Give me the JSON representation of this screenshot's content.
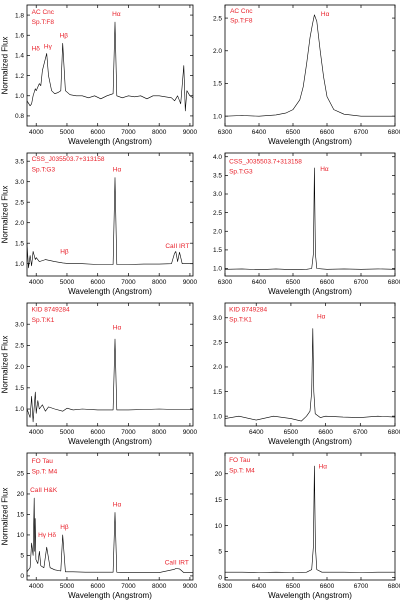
{
  "style": {
    "annotation_color": "#e8202a",
    "line_color": "#000000",
    "background": "#ffffff"
  },
  "chart_data": [
    {
      "id": "p1",
      "type": "line",
      "title": "",
      "xlabel": "Wavelength (Angstrom)",
      "ylabel": "Normalized Flux",
      "xlim": [
        3700,
        9100
      ],
      "ylim": [
        0.7,
        1.9
      ],
      "xticks": [
        4000,
        5000,
        6000,
        7000,
        8000,
        9000
      ],
      "yticks": [
        0.8,
        1.0,
        1.2,
        1.4,
        1.6,
        1.8
      ],
      "x": [
        3700,
        3800,
        3850,
        3900,
        3970,
        4000,
        4100,
        4150,
        4200,
        4340,
        4400,
        4500,
        4600,
        4700,
        4800,
        4861,
        4950,
        5100,
        5300,
        5500,
        5700,
        5900,
        6100,
        6300,
        6500,
        6563,
        6620,
        6800,
        7000,
        7200,
        7400,
        7600,
        7800,
        8000,
        8200,
        8400,
        8500,
        8600,
        8700,
        8800,
        8850,
        8900,
        9000,
        9100
      ],
      "y": [
        0.95,
        0.9,
        0.92,
        1.0,
        1.07,
        1.05,
        1.12,
        1.1,
        1.25,
        1.42,
        1.2,
        1.05,
        1.02,
        1.03,
        1.05,
        1.52,
        1.05,
        1.01,
        1.0,
        1.0,
        0.98,
        1.0,
        0.97,
        1.0,
        1.02,
        1.73,
        1.0,
        0.98,
        1.0,
        0.99,
        1.0,
        0.97,
        1.0,
        1.0,
        0.99,
        0.98,
        0.95,
        1.0,
        0.92,
        1.3,
        0.85,
        1.05,
        1.0,
        0.98
      ],
      "annotations": [
        {
          "text": "AC Cnc",
          "x": 3850,
          "y": 1.81
        },
        {
          "text": "Sp.T:F8",
          "x": 3850,
          "y": 1.71
        },
        {
          "text": "Hδ",
          "x": 3850,
          "y": 1.45
        },
        {
          "text": "Hγ",
          "x": 4250,
          "y": 1.47
        },
        {
          "text": "Hβ",
          "x": 4760,
          "y": 1.58
        },
        {
          "text": "Hα",
          "x": 6470,
          "y": 1.79
        }
      ]
    },
    {
      "id": "p2",
      "type": "line",
      "title": "",
      "xlabel": "Wavelength (Angstrom)",
      "ylabel": "",
      "xlim": [
        6300,
        6800
      ],
      "ylim": [
        0.85,
        2.7
      ],
      "xticks": [
        6300,
        6400,
        6500,
        6600,
        6700,
        6800
      ],
      "yticks": [
        1.0,
        1.5,
        2.0,
        2.5
      ],
      "x": [
        6300,
        6350,
        6400,
        6450,
        6480,
        6500,
        6520,
        6530,
        6540,
        6550,
        6557,
        6563,
        6570,
        6580,
        6590,
        6600,
        6620,
        6650,
        6700,
        6750,
        6800
      ],
      "y": [
        1.0,
        1.01,
        1.0,
        1.02,
        1.05,
        1.1,
        1.25,
        1.45,
        1.8,
        2.2,
        2.4,
        2.55,
        2.45,
        2.0,
        1.6,
        1.3,
        1.1,
        1.03,
        1.0,
        1.0,
        1.0
      ],
      "annotations": [
        {
          "text": "AC Cnc",
          "x": 6315,
          "y": 2.58
        },
        {
          "text": "Sp.T:F8",
          "x": 6315,
          "y": 2.43
        },
        {
          "text": "Hα",
          "x": 6582,
          "y": 2.53
        }
      ]
    },
    {
      "id": "p3",
      "type": "line",
      "title": "",
      "xlabel": "Wavelength (Angstrom)",
      "ylabel": "Normalized Flux",
      "xlim": [
        3700,
        9100
      ],
      "ylim": [
        0.7,
        3.7
      ],
      "xticks": [
        4000,
        5000,
        6000,
        7000,
        8000,
        9000
      ],
      "yticks": [
        1.0,
        1.5,
        2.0,
        2.5,
        3.0,
        3.5
      ],
      "x": [
        3700,
        3750,
        3800,
        3850,
        3900,
        3970,
        4000,
        4100,
        4300,
        4600,
        4861,
        5100,
        5500,
        6000,
        6500,
        6563,
        6620,
        7000,
        7500,
        8000,
        8400,
        8498,
        8542,
        8600,
        8662,
        8750,
        9000,
        9100
      ],
      "y": [
        1.5,
        0.9,
        1.2,
        0.95,
        1.3,
        1.1,
        1.15,
        1.05,
        1.1,
        1.05,
        1.02,
        1.0,
        1.0,
        0.98,
        0.98,
        3.1,
        0.98,
        0.98,
        0.99,
        0.99,
        1.0,
        1.25,
        1.3,
        1.05,
        1.28,
        1.0,
        1.0,
        1.0
      ],
      "annotations": [
        {
          "text": "CSS_J035503.7+313158",
          "x": 3850,
          "y": 3.5
        },
        {
          "text": "Sp.T:G3",
          "x": 3850,
          "y": 3.25
        },
        {
          "text": "Hα",
          "x": 6490,
          "y": 3.25
        },
        {
          "text": "Hβ",
          "x": 4780,
          "y": 1.25
        },
        {
          "text": "CaII IRT",
          "x": 8200,
          "y": 1.38
        }
      ]
    },
    {
      "id": "p4",
      "type": "line",
      "title": "",
      "xlabel": "Wavelength (Angstrom)",
      "ylabel": "",
      "xlim": [
        6300,
        6800
      ],
      "ylim": [
        0.8,
        4.1
      ],
      "xticks": [
        6300,
        6400,
        6500,
        6600,
        6700,
        6800
      ],
      "yticks": [
        1.0,
        1.5,
        2.0,
        2.5,
        3.0,
        3.5,
        4.0
      ],
      "x": [
        6300,
        6350,
        6400,
        6450,
        6500,
        6540,
        6555,
        6560,
        6563,
        6566,
        6570,
        6585,
        6600,
        6650,
        6700,
        6750,
        6800
      ],
      "y": [
        0.98,
        0.99,
        0.97,
        0.99,
        0.97,
        0.98,
        1.0,
        1.4,
        3.7,
        1.4,
        1.0,
        0.99,
        0.98,
        0.99,
        0.98,
        0.99,
        0.98
      ],
      "annotations": [
        {
          "text": "CSS_J035503.7+313158",
          "x": 6312,
          "y": 3.82
        },
        {
          "text": "Sp.T:G3",
          "x": 6312,
          "y": 3.55
        },
        {
          "text": "Hα",
          "x": 6580,
          "y": 3.62
        }
      ]
    },
    {
      "id": "p5",
      "type": "line",
      "title": "",
      "xlabel": "Wavelength (Angstrom)",
      "ylabel": "Normalized Flux",
      "xlim": [
        3700,
        9100
      ],
      "ylim": [
        0.6,
        3.5
      ],
      "xticks": [
        4000,
        5000,
        6000,
        7000,
        8000,
        9000
      ],
      "yticks": [
        1.0,
        1.5,
        2.0,
        2.5,
        3.0
      ],
      "x": [
        3700,
        3800,
        3850,
        3900,
        3970,
        4000,
        4050,
        4100,
        4200,
        4300,
        4400,
        4600,
        4861,
        5000,
        5200,
        5500,
        6000,
        6500,
        6563,
        6620,
        7000,
        7500,
        8000,
        8500,
        9000,
        9100
      ],
      "y": [
        1.0,
        0.8,
        1.3,
        0.7,
        1.4,
        0.9,
        1.2,
        1.0,
        1.1,
        0.95,
        1.05,
        1.0,
        0.95,
        1.02,
        0.98,
        1.0,
        0.98,
        0.98,
        2.65,
        0.98,
        0.98,
        0.99,
        1.0,
        0.99,
        0.99,
        0.99
      ],
      "annotations": [
        {
          "text": "KID 8749284",
          "x": 3850,
          "y": 3.3
        },
        {
          "text": "Sp.T:K1",
          "x": 3850,
          "y": 3.05
        },
        {
          "text": "Hα",
          "x": 6490,
          "y": 2.88
        }
      ]
    },
    {
      "id": "p6",
      "type": "line",
      "title": "",
      "xlabel": "Wavelength (Angstrom)",
      "ylabel": "",
      "xlim": [
        6310,
        6800
      ],
      "ylim": [
        0.8,
        3.3
      ],
      "xticks": [
        6400,
        6500,
        6600,
        6700,
        6800
      ],
      "yticks": [
        1.0,
        1.5,
        2.0,
        2.5,
        3.0
      ],
      "x": [
        6310,
        6350,
        6400,
        6450,
        6500,
        6530,
        6545,
        6555,
        6560,
        6563,
        6566,
        6570,
        6585,
        6600,
        6650,
        6700,
        6750,
        6800
      ],
      "y": [
        0.95,
        1.0,
        0.92,
        1.0,
        0.95,
        0.9,
        1.0,
        1.1,
        1.5,
        2.78,
        1.5,
        1.05,
        0.97,
        1.0,
        0.98,
        0.97,
        1.0,
        0.98
      ],
      "annotations": [
        {
          "text": "KID 8749284",
          "x": 6322,
          "y": 3.13
        },
        {
          "text": "Sp.T:K1",
          "x": 6322,
          "y": 2.92
        },
        {
          "text": "Hα",
          "x": 6575,
          "y": 2.98
        }
      ]
    },
    {
      "id": "p7",
      "type": "line",
      "title": "",
      "xlabel": "Wavelength (Angstrom)",
      "ylabel": "Normalized Flux",
      "xlim": [
        3700,
        9100
      ],
      "ylim": [
        -1,
        30
      ],
      "xticks": [
        4000,
        5000,
        6000,
        7000,
        8000,
        9000
      ],
      "yticks": [
        0,
        5,
        10,
        15,
        20,
        25
      ],
      "x": [
        3700,
        3800,
        3850,
        3900,
        3934,
        3950,
        3968,
        3990,
        4050,
        4102,
        4150,
        4250,
        4340,
        4450,
        4600,
        4800,
        4861,
        4950,
        5200,
        5600,
        6000,
        6500,
        6563,
        6620,
        7000,
        7500,
        8000,
        8498,
        8542,
        8662,
        8800,
        9100
      ],
      "y": [
        1,
        2,
        8,
        5,
        19,
        6,
        14,
        4,
        3,
        6,
        2.5,
        2,
        7,
        2,
        1.5,
        1.2,
        10,
        1,
        1,
        0.9,
        0.9,
        0.9,
        15.5,
        0.9,
        0.8,
        0.8,
        0.8,
        1.6,
        1.8,
        1.7,
        0.8,
        0.8
      ],
      "annotations": [
        {
          "text": "FO Tau",
          "x": 3850,
          "y": 27.5
        },
        {
          "text": "Sp.T: M4",
          "x": 3850,
          "y": 25
        },
        {
          "text": "CaII H&K",
          "x": 3800,
          "y": 20.5
        },
        {
          "text": "Hγ Hδ",
          "x": 4060,
          "y": 9.5
        },
        {
          "text": "Hβ",
          "x": 4780,
          "y": 11.5
        },
        {
          "text": "Hα",
          "x": 6490,
          "y": 17
        },
        {
          "text": "CaII IRT",
          "x": 8180,
          "y": 2.8
        }
      ]
    },
    {
      "id": "p8",
      "type": "line",
      "title": "",
      "xlabel": "Wavelength (Angstrom)",
      "ylabel": "",
      "xlim": [
        6300,
        6800
      ],
      "ylim": [
        -0.5,
        24
      ],
      "xticks": [
        6300,
        6400,
        6500,
        6600,
        6700,
        6800
      ],
      "yticks": [
        0,
        5,
        10,
        15,
        20
      ],
      "x": [
        6300,
        6350,
        6400,
        6450,
        6500,
        6540,
        6555,
        6560,
        6563,
        6566,
        6570,
        6585,
        6600,
        6650,
        6700,
        6750,
        6800
      ],
      "y": [
        1,
        1,
        0.95,
        1,
        0.95,
        1,
        1.5,
        6,
        21.5,
        6,
        1.5,
        1,
        1,
        1,
        0.95,
        1,
        1
      ],
      "annotations": [
        {
          "text": "FO Tau",
          "x": 6312,
          "y": 22.3
        },
        {
          "text": "Sp.T: M4",
          "x": 6312,
          "y": 20.2
        },
        {
          "text": "Hα",
          "x": 6575,
          "y": 21
        }
      ]
    }
  ]
}
